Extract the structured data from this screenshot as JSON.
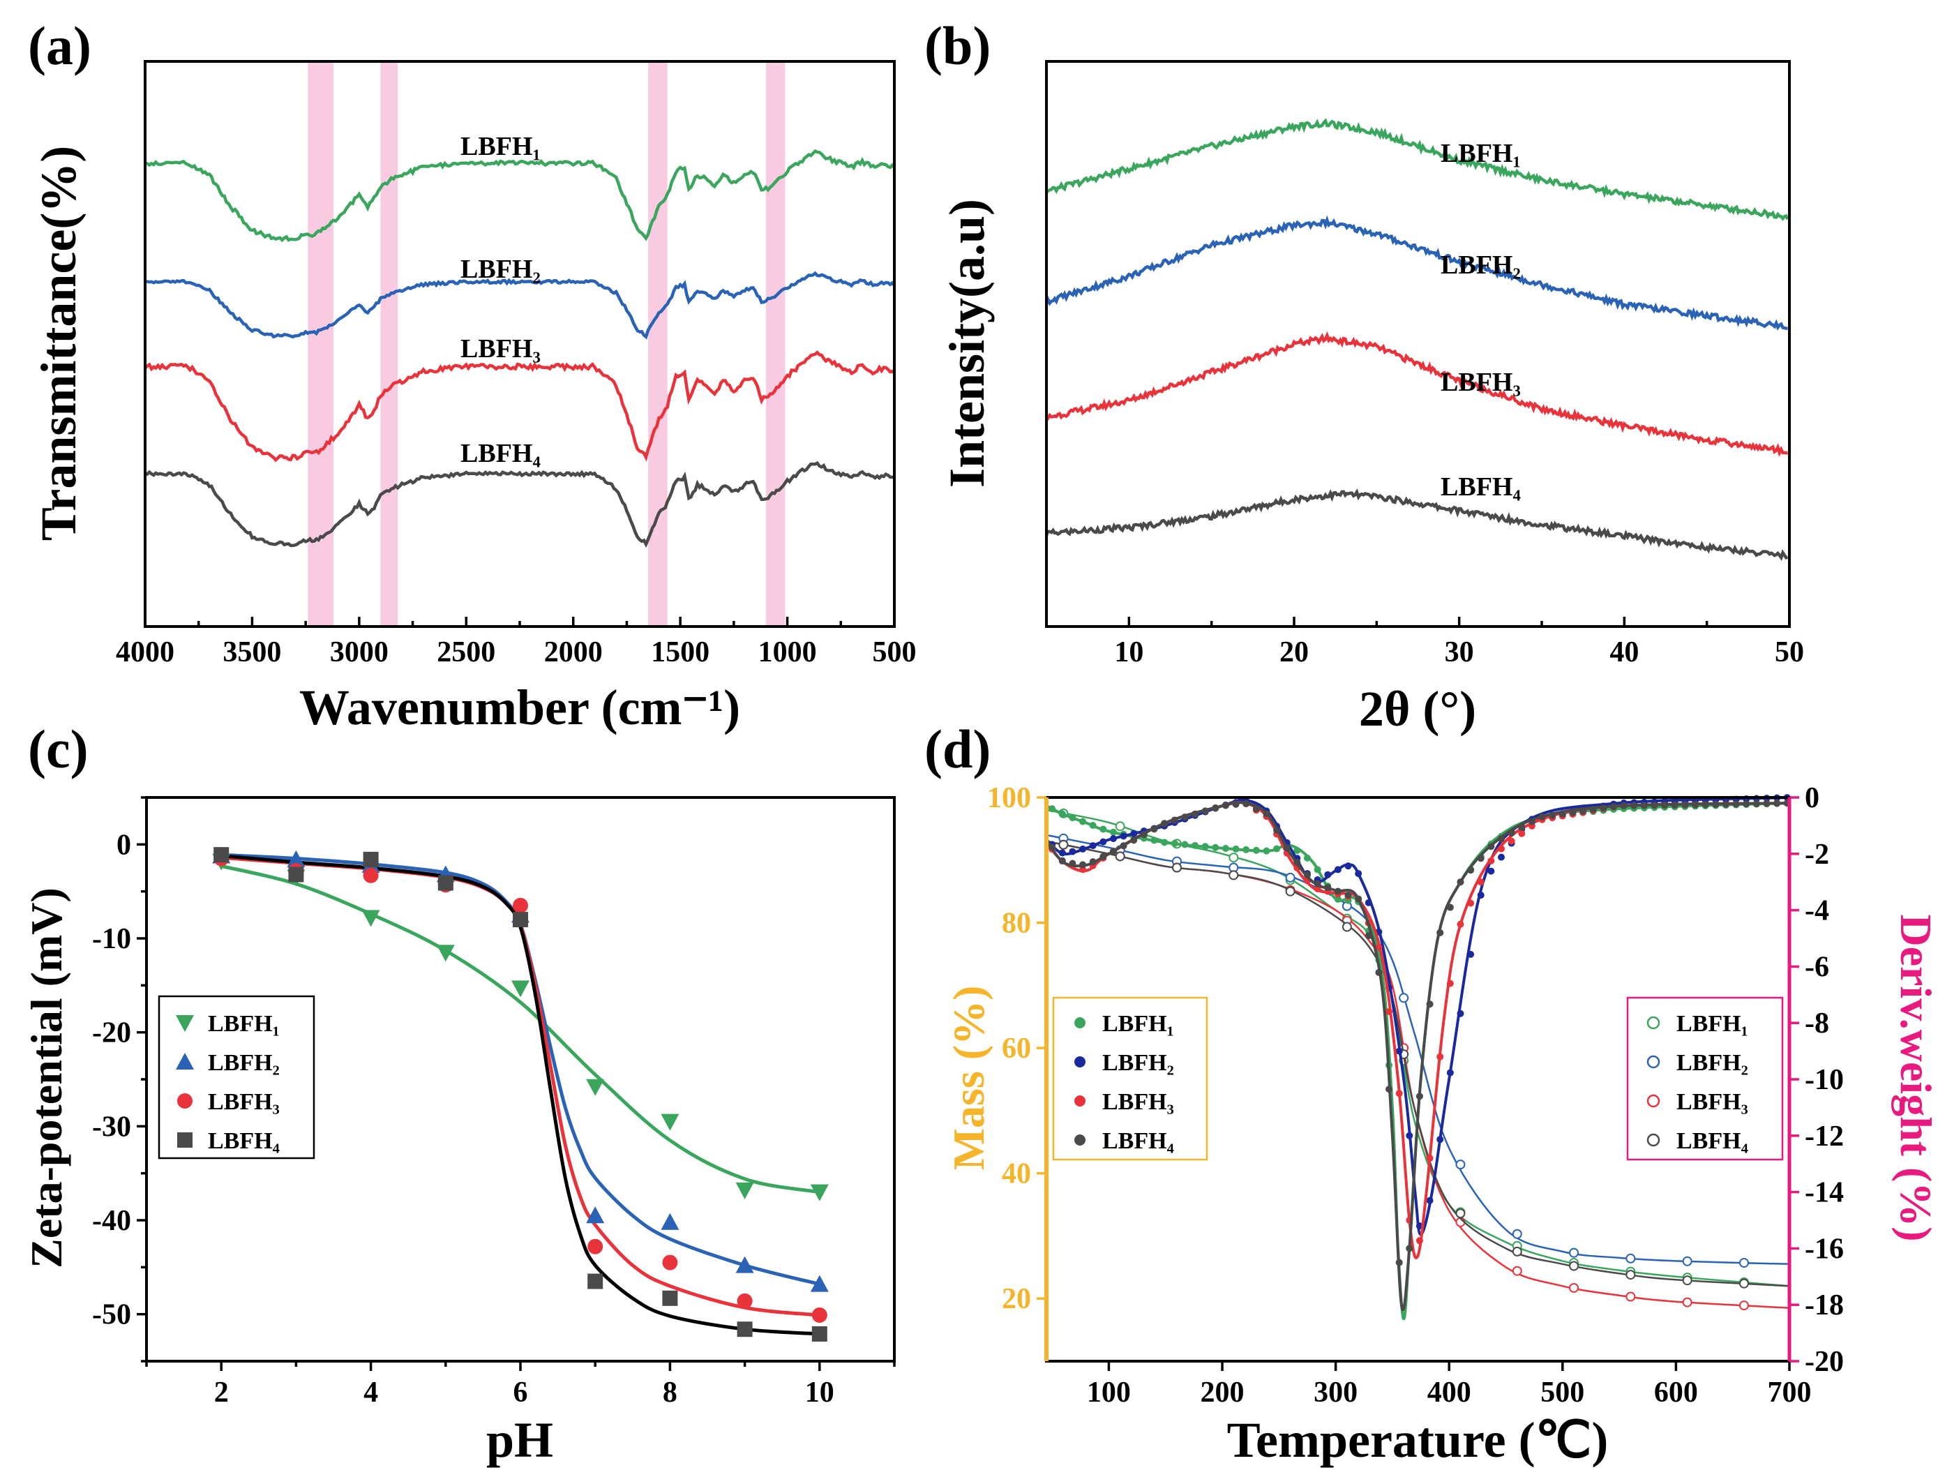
{
  "colors": {
    "green": "#3aa55c",
    "blue": "#2a63b5",
    "red": "#e8333a",
    "gray": "#4a4a4a",
    "black": "#000000",
    "navy": "#1a2a9c",
    "orange": "#f5b429",
    "magenta": "#e8197f",
    "band": "#f7c2dc"
  },
  "chart_data": [
    {
      "panel": "(a)",
      "type": "line",
      "title": "",
      "xlabel": "Wavenumber (cm⁻¹)",
      "ylabel": "Transmittance(%)",
      "xlim": [
        4000,
        500
      ],
      "xticks": [
        "4000",
        "3500",
        "3000",
        "2500",
        "2000",
        "1500",
        "1000",
        "500"
      ],
      "ylim": [
        0,
        100
      ],
      "highlight_bands": [
        [
          3240,
          3120
        ],
        [
          2900,
          2820
        ],
        [
          1650,
          1560
        ],
        [
          1100,
          1010
        ]
      ],
      "series_labels": [
        "LBFH₁",
        "LBFH₂",
        "LBFH₃",
        "LBFH₄"
      ],
      "series": [
        {
          "name": "LBFH₁",
          "color": "green",
          "offset": 82,
          "scale": 14
        },
        {
          "name": "LBFH₂",
          "color": "blue",
          "offset": 61,
          "scale": 10
        },
        {
          "name": "LBFH₃",
          "color": "red",
          "offset": 46,
          "scale": 17
        },
        {
          "name": "LBFH₄",
          "color": "gray",
          "offset": 27,
          "scale": 13
        }
      ],
      "profile_x": [
        4000,
        3800,
        3700,
        3600,
        3500,
        3400,
        3300,
        3250,
        3200,
        3100,
        3000,
        2960,
        2930,
        2900,
        2850,
        2800,
        2700,
        2500,
        2200,
        2000,
        1900,
        1800,
        1750,
        1700,
        1660,
        1640,
        1600,
        1560,
        1520,
        1480,
        1460,
        1420,
        1380,
        1340,
        1300,
        1250,
        1200,
        1160,
        1120,
        1080,
        1040,
        1000,
        950,
        900,
        870,
        800,
        750,
        700,
        650,
        600,
        550,
        500
      ],
      "profile_y": [
        0,
        0,
        -0.15,
        -0.55,
        -0.85,
        -0.95,
        -0.95,
        -0.9,
        -0.9,
        -0.7,
        -0.4,
        -0.55,
        -0.45,
        -0.3,
        -0.2,
        -0.15,
        -0.05,
        0,
        0,
        0,
        0,
        -0.2,
        -0.5,
        -0.85,
        -0.95,
        -0.8,
        -0.55,
        -0.4,
        -0.1,
        -0.05,
        -0.35,
        -0.15,
        -0.2,
        -0.3,
        -0.15,
        -0.25,
        -0.15,
        -0.1,
        -0.35,
        -0.3,
        -0.2,
        -0.1,
        0,
        0.1,
        0.15,
        0.05,
        0.0,
        -0.05,
        0.02,
        -0.05,
        -0.02,
        -0.05
      ]
    },
    {
      "panel": "(b)",
      "type": "line",
      "title": "",
      "xlabel": "2θ (°)",
      "ylabel": "Intensity(a.u)",
      "xlim": [
        5,
        50
      ],
      "xticks": [
        "10",
        "20",
        "30",
        "40",
        "50"
      ],
      "ylim": [
        0,
        100
      ],
      "series_labels": [
        "LBFH₁",
        "LBFH₂",
        "LBFH₃",
        "LBFH₄"
      ],
      "series": [
        {
          "name": "LBFH₁",
          "color": "green",
          "x": [
            5,
            10,
            15,
            20,
            22,
            25,
            30,
            35,
            40,
            45,
            50
          ],
          "y": [
            77,
            81,
            85,
            88.5,
            89,
            87.5,
            82.5,
            79,
            76.5,
            74.5,
            72.5
          ]
        },
        {
          "name": "LBFH₂",
          "color": "blue",
          "x": [
            5,
            10,
            15,
            20,
            22,
            25,
            30,
            35,
            40,
            45,
            50
          ],
          "y": [
            57.5,
            62,
            67.5,
            71,
            71.5,
            69.5,
            64.5,
            60.5,
            57,
            55,
            53
          ]
        },
        {
          "name": "LBFH₃",
          "color": "red",
          "x": [
            5,
            10,
            15,
            20,
            22,
            25,
            30,
            35,
            40,
            45,
            50
          ],
          "y": [
            37,
            40,
            45,
            50,
            51,
            49.5,
            43.5,
            38.5,
            35.5,
            33,
            31
          ]
        },
        {
          "name": "LBFH₄",
          "color": "gray",
          "x": [
            5,
            10,
            15,
            20,
            23,
            25,
            30,
            35,
            40,
            45,
            50
          ],
          "y": [
            16.5,
            17.5,
            19.5,
            22.5,
            23.5,
            23,
            20.5,
            18,
            16,
            14,
            12.5
          ]
        }
      ]
    },
    {
      "panel": "(c)",
      "type": "scatter",
      "title": "",
      "xlabel": "pH",
      "ylabel": "Zeta-potential (mV)",
      "xlim": [
        1,
        11
      ],
      "ylim": [
        -55,
        5
      ],
      "xticks": [
        "2",
        "4",
        "6",
        "8",
        "10"
      ],
      "yticks": [
        "0",
        "-10",
        "-20",
        "-30",
        "-40",
        "-50"
      ],
      "legend": [
        "LBFH₁",
        "LBFH₂",
        "LBFH₃",
        "LBFH₄"
      ],
      "series": [
        {
          "name": "LBFH₁",
          "color": "green",
          "marker": "triangle-down",
          "x": [
            2,
            3,
            4,
            5,
            6,
            7,
            8,
            9,
            10
          ],
          "y": [
            -1.8,
            -3.5,
            -7.8,
            -11.5,
            -15.3,
            -25.8,
            -29.5,
            -36.8,
            -37
          ],
          "fit_x": [
            2,
            3,
            4,
            5,
            6,
            7,
            8,
            9,
            10
          ],
          "fit_y": [
            -2.3,
            -4.2,
            -7.4,
            -11.3,
            -16.8,
            -24.5,
            -31.5,
            -35.6,
            -37.0
          ]
        },
        {
          "name": "LBFH₂",
          "color": "blue",
          "marker": "triangle-up",
          "x": [
            2,
            3,
            4,
            5,
            6,
            7,
            8,
            9,
            10
          ],
          "y": [
            -1.2,
            -1.6,
            -2.2,
            -3.2,
            -7.5,
            -39.5,
            -40.2,
            -44.8,
            -46.8
          ],
          "fit_x": [
            2,
            3,
            4,
            5,
            5.5,
            5.8,
            6,
            6.2,
            6.4,
            6.6,
            6.8,
            7,
            7.5,
            8,
            9,
            10
          ],
          "fit_y": [
            -1.1,
            -1.5,
            -2.1,
            -3.0,
            -4.2,
            -6.0,
            -8.5,
            -14.5,
            -21.5,
            -28,
            -32.5,
            -35.5,
            -39.5,
            -42,
            -44.8,
            -46.8
          ]
        },
        {
          "name": "LBFH₃",
          "color": "red",
          "marker": "circle",
          "x": [
            2,
            3,
            4,
            5,
            6,
            7,
            8,
            9,
            10
          ],
          "y": [
            -1.5,
            -2.8,
            -3.3,
            -4.3,
            -6.5,
            -42.8,
            -44.5,
            -48.6,
            -50.1
          ],
          "fit_x": [
            2,
            3,
            4,
            5,
            5.5,
            5.8,
            6,
            6.2,
            6.4,
            6.6,
            6.8,
            7,
            7.5,
            8,
            9,
            10
          ],
          "fit_y": [
            -1.4,
            -2.0,
            -2.6,
            -3.5,
            -4.6,
            -6.2,
            -8.6,
            -15,
            -23.5,
            -32,
            -37.5,
            -40.5,
            -44.8,
            -47,
            -49.3,
            -50.1
          ]
        },
        {
          "name": "LBFH₄",
          "color": "black",
          "marker": "square",
          "x": [
            2,
            3,
            4,
            5,
            6,
            7,
            8,
            9,
            10
          ],
          "y": [
            -1.1,
            -3.2,
            -1.6,
            -4.1,
            -8.0,
            -46.5,
            -48.3,
            -51.6,
            -52.1
          ],
          "fit_x": [
            2,
            3,
            4,
            5,
            5.5,
            5.8,
            6,
            6.2,
            6.4,
            6.6,
            6.8,
            7,
            7.5,
            8,
            9,
            10
          ],
          "fit_y": [
            -1.2,
            -1.9,
            -2.5,
            -3.4,
            -4.5,
            -6.2,
            -8.8,
            -16,
            -26,
            -35.5,
            -41.5,
            -44.8,
            -48.3,
            -50.2,
            -51.6,
            -52.1
          ]
        }
      ]
    },
    {
      "panel": "(d)",
      "type": "line",
      "title": "",
      "xlabel": "Temperature (℃)",
      "ylabel": "Mass (%)",
      "ylabel_right": "Deriv.weight (%)",
      "xlim": [
        45,
        700
      ],
      "ylim": [
        10,
        100
      ],
      "ylim_right": [
        -20,
        0
      ],
      "xticks": [
        "100",
        "200",
        "300",
        "400",
        "500",
        "600",
        "700"
      ],
      "yticks": [
        "20",
        "40",
        "60",
        "80",
        "100"
      ],
      "yticks_right": [
        "0",
        "-2",
        "-4",
        "-6",
        "-8",
        "-10",
        "-12",
        "-14",
        "-16",
        "-18",
        "-20"
      ],
      "legend_left": [
        "LBFH₁",
        "LBFH₂",
        "LBFH₃",
        "LBFH₄"
      ],
      "legend_right": [
        "LBFH₁",
        "LBFH₂",
        "LBFH₃",
        "LBFH₄"
      ],
      "mass_series": [
        {
          "name": "LBFH₁",
          "color": "green",
          "x": [
            45,
            100,
            150,
            200,
            250,
            300,
            330,
            350,
            370,
            400,
            450,
            500,
            550,
            600,
            700
          ],
          "y": [
            98,
            96,
            93,
            91,
            88,
            82,
            78,
            68,
            48,
            35,
            29,
            26,
            24.5,
            23.5,
            22
          ]
        },
        {
          "name": "LBFH₂",
          "color": "blue",
          "x": [
            45,
            100,
            150,
            200,
            250,
            300,
            330,
            350,
            370,
            400,
            450,
            500,
            550,
            600,
            700
          ],
          "y": [
            94,
            92,
            90,
            89,
            88,
            84,
            80,
            74,
            62,
            44,
            31,
            27.5,
            26.5,
            26,
            25.5
          ]
        },
        {
          "name": "LBFH₃",
          "color": "red",
          "x": [
            45,
            100,
            150,
            200,
            250,
            300,
            330,
            350,
            370,
            400,
            450,
            500,
            550,
            600,
            700
          ],
          "y": [
            93,
            91,
            89,
            88,
            86,
            82,
            77,
            70,
            50,
            34,
            25,
            22,
            20.5,
            19.5,
            18.5
          ]
        },
        {
          "name": "LBFH₄",
          "color": "gray",
          "x": [
            45,
            100,
            150,
            200,
            250,
            300,
            330,
            350,
            370,
            400,
            450,
            500,
            550,
            600,
            700
          ],
          "y": [
            93,
            91,
            89,
            88,
            86,
            81,
            76,
            68,
            50,
            35,
            28,
            25.5,
            24,
            23,
            22
          ]
        }
      ],
      "deriv_series": [
        {
          "name": "LBFH₁",
          "color": "green",
          "x": [
            45,
            60,
            80,
            100,
            150,
            200,
            240,
            260,
            280,
            300,
            320,
            340,
            350,
            355,
            360,
            365,
            375,
            390,
            410,
            440,
            480,
            550,
            700
          ],
          "y": [
            -0.3,
            -0.6,
            -0.9,
            -1.2,
            -1.6,
            -1.8,
            -1.9,
            -1.7,
            -2.3,
            -3.6,
            -3.7,
            -6,
            -11,
            -16,
            -18.5,
            -16,
            -10,
            -5,
            -3,
            -1.5,
            -0.7,
            -0.4,
            -0.2
          ]
        },
        {
          "name": "LBFH₂",
          "color": "navy",
          "x": [
            45,
            60,
            80,
            100,
            150,
            200,
            220,
            240,
            260,
            280,
            300,
            310,
            320,
            340,
            360,
            370,
            375,
            385,
            400,
            430,
            470,
            550,
            700
          ],
          "y": [
            -1.5,
            -2.0,
            -1.8,
            -1.5,
            -1.0,
            -0.3,
            -0.1,
            -0.5,
            -1.8,
            -3.0,
            -2.6,
            -2.4,
            -2.7,
            -5,
            -10,
            -14,
            -15.5,
            -14,
            -10,
            -3,
            -0.8,
            -0.2,
            0
          ]
        },
        {
          "name": "LBFH₃",
          "color": "red",
          "x": [
            45,
            60,
            80,
            100,
            150,
            200,
            220,
            240,
            260,
            280,
            300,
            320,
            340,
            355,
            365,
            372,
            380,
            395,
            410,
            440,
            480,
            550,
            700
          ],
          "y": [
            -1.6,
            -2.3,
            -2.6,
            -2.0,
            -0.9,
            -0.3,
            -0.2,
            -0.7,
            -2.2,
            -3.2,
            -3.4,
            -3.6,
            -5.5,
            -10,
            -15,
            -16.3,
            -14,
            -8,
            -4.5,
            -2,
            -0.8,
            -0.3,
            -0.2
          ]
        },
        {
          "name": "LBFH₄",
          "color": "gray",
          "x": [
            45,
            60,
            80,
            100,
            150,
            200,
            220,
            240,
            260,
            280,
            300,
            320,
            340,
            350,
            358,
            365,
            375,
            390,
            410,
            440,
            480,
            550,
            700
          ],
          "y": [
            -1.5,
            -2.3,
            -2.4,
            -2.0,
            -0.9,
            -0.3,
            -0.2,
            -0.6,
            -2.0,
            -3.0,
            -3.3,
            -3.6,
            -6.5,
            -12,
            -18,
            -16,
            -10,
            -5,
            -3,
            -1.6,
            -0.7,
            -0.3,
            -0.2
          ]
        }
      ]
    }
  ]
}
